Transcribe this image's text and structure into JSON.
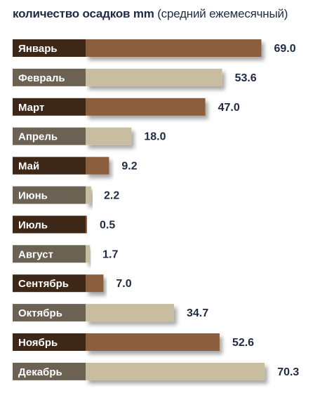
{
  "chart_data": {
    "type": "bar",
    "orientation": "horizontal",
    "title": "количество осадков mm",
    "subtitle": "(средний ежемесячный)",
    "categories": [
      "Январь",
      "Февраль",
      "Март",
      "Апрель",
      "Май",
      "Июнь",
      "Июль",
      "Август",
      "Сентябрь",
      "Октябрь",
      "Ноябрь",
      "Декабрь"
    ],
    "values": [
      69.0,
      53.6,
      47.0,
      18.0,
      9.2,
      2.2,
      0.5,
      1.7,
      7.0,
      34.7,
      52.6,
      70.3
    ],
    "value_labels": [
      "69.0",
      "53.6",
      "47.0",
      "18.0",
      "9.2",
      "2.2",
      "0.5",
      "1.7",
      "7.0",
      "34.7",
      "52.6",
      "70.3"
    ],
    "xlim": [
      0,
      80
    ],
    "grid": false,
    "legend": "none",
    "colors": {
      "bar_odd": "#8b5e3c",
      "bar_even": "#c8bd9f",
      "label_odd": "#3d2817",
      "label_even": "#6b6253",
      "label_text": "#ffffff",
      "value_text": "#1f2a44"
    }
  }
}
